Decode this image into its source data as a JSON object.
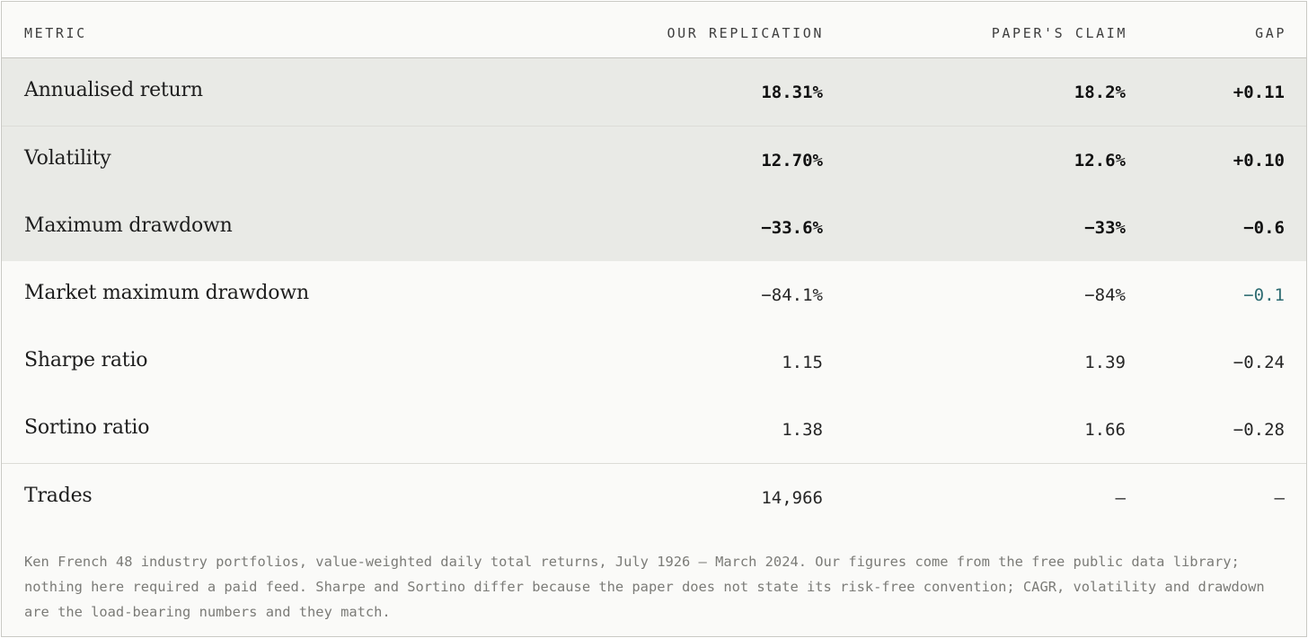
{
  "table": {
    "headers": {
      "metric": "METRIC",
      "replication": "OUR REPLICATION",
      "paper": "PAPER'S CLAIM",
      "gap": "GAP"
    },
    "rows": [
      {
        "metric": "Annualised return",
        "replication": "18.31%",
        "paper": "18.2%",
        "gap": "+0.11",
        "highlighted": true
      },
      {
        "metric": "Volatility",
        "replication": "12.70%",
        "paper": "12.6%",
        "gap": "+0.10",
        "highlighted": true
      },
      {
        "metric": "Maximum drawdown",
        "replication": "−33.6%",
        "paper": "−33%",
        "gap": "−0.6",
        "highlighted": true
      },
      {
        "metric": "Market maximum drawdown",
        "replication": "−84.1%",
        "paper": "−84%",
        "gap": "−0.1",
        "highlighted": false
      },
      {
        "metric": "Sharpe ratio",
        "replication": "1.15",
        "paper": "1.39",
        "gap": "−0.24",
        "highlighted": false
      },
      {
        "metric": "Sortino ratio",
        "replication": "1.38",
        "paper": "1.66",
        "gap": "−0.28",
        "highlighted": false
      },
      {
        "metric": "Trades",
        "replication": "14,966",
        "paper": "—",
        "gap": "—",
        "highlighted": false
      }
    ],
    "note": "Ken French 48 industry portfolios, value-weighted daily total returns, July 1926 – March 2024. Our figures come from the free public data library; nothing here required a paid feed. Sharpe and Sortino differ because the paper does not state its risk-free convention; CAGR, volatility and drawdown are the load-bearing numbers and they match."
  },
  "colors": {
    "highlight_row_bg": "#e9eae6",
    "accent_gap": "#2e6c72"
  }
}
